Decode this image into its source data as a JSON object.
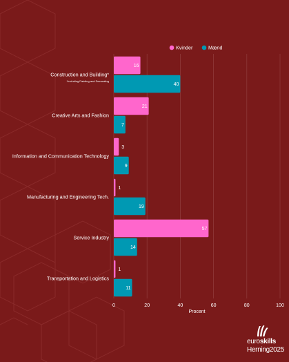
{
  "chart_data": {
    "type": "bar",
    "orientation": "horizontal",
    "categories": [
      "Construction and Building*",
      "Creative Arts and Fashion",
      "Information and Communication Technology",
      "Manufacturing and Engineering Tech.",
      "Service Industry",
      "Transportation and Logistics"
    ],
    "category_note": "*Including Painting and Decorating",
    "series": [
      {
        "name": "Kvinder",
        "color": "#ff66cc",
        "values": [
          16,
          21,
          3,
          1,
          57,
          1
        ]
      },
      {
        "name": "Mænd",
        "color": "#0099b3",
        "values": [
          40,
          7,
          9,
          19,
          14,
          11
        ]
      }
    ],
    "xlabel": "Procent",
    "xlim": [
      0,
      100
    ],
    "xticks": [
      0,
      20,
      40,
      60,
      80,
      100
    ],
    "grid": true,
    "legend_position": "top-right"
  },
  "logo": {
    "line1_prefix": "euro",
    "line1_bold": "skills",
    "line2": "Herning2025"
  },
  "colors": {
    "background": "#7a1a1a",
    "gridline": "#8f3a3a",
    "text": "#ffffff"
  }
}
